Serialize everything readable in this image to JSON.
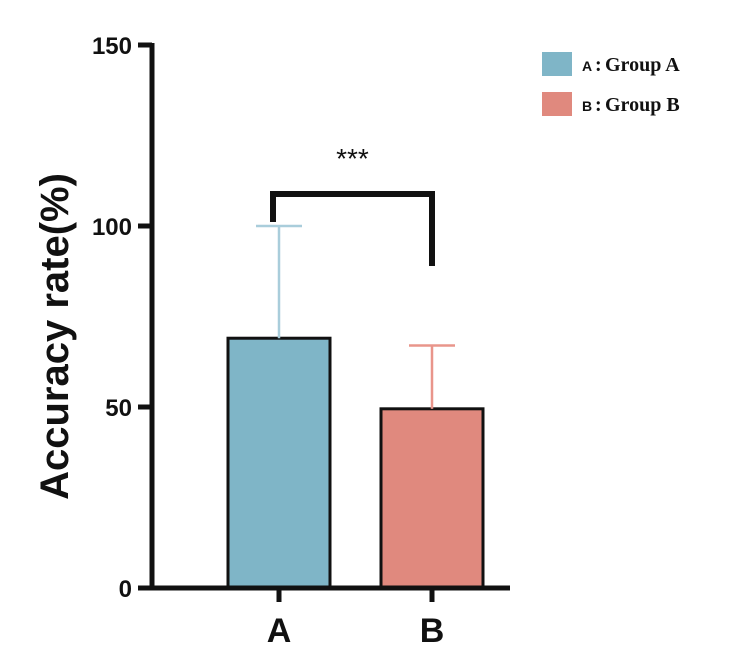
{
  "chart_data": {
    "type": "bar",
    "title": "",
    "xlabel": "",
    "ylabel": "Accuracy rate(%)",
    "ylim": [
      0,
      150
    ],
    "yticks": [
      0,
      50,
      100,
      150
    ],
    "grid": false,
    "legend_position": "top-right",
    "categories": [
      "A",
      "B"
    ],
    "values": [
      69,
      49.5
    ],
    "error_upper": [
      100,
      67
    ],
    "colors": [
      "#7fb5c7",
      "#e0897e"
    ],
    "edge_color": "#111111",
    "error_colors": [
      "#a9cddb",
      "#e9958b"
    ],
    "significance": {
      "label": "***",
      "between": [
        "A",
        "B"
      ]
    },
    "legend": [
      {
        "key": "A",
        "sep": ":",
        "text": "Group A",
        "color": "#7fb5c7"
      },
      {
        "key": "B",
        "sep": ":",
        "text": "Group B",
        "color": "#e0897e"
      }
    ]
  }
}
